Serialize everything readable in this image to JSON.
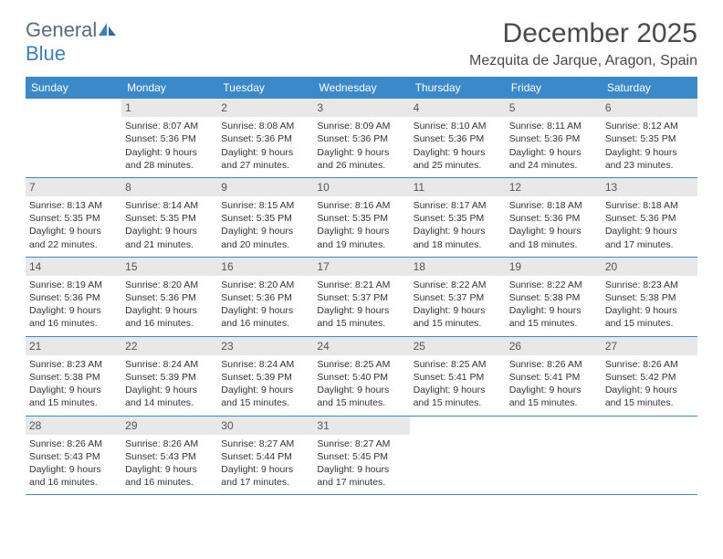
{
  "brand": {
    "general": "General",
    "blue": "Blue"
  },
  "header": {
    "title": "December 2025",
    "location": "Mezquita de Jarque, Aragon, Spain"
  },
  "colors": {
    "header_bg": "#3b89c9",
    "header_text": "#ffffff",
    "daynum_bg": "#e8e8e8",
    "row_border": "#3b89c9",
    "logo_general": "#5a6b7a",
    "logo_blue": "#3b7fc4"
  },
  "dayNames": [
    "Sunday",
    "Monday",
    "Tuesday",
    "Wednesday",
    "Thursday",
    "Friday",
    "Saturday"
  ],
  "weeks": [
    [
      null,
      {
        "n": "1",
        "sr": "8:07 AM",
        "ss": "5:36 PM",
        "dl": "9 hours and 28 minutes."
      },
      {
        "n": "2",
        "sr": "8:08 AM",
        "ss": "5:36 PM",
        "dl": "9 hours and 27 minutes."
      },
      {
        "n": "3",
        "sr": "8:09 AM",
        "ss": "5:36 PM",
        "dl": "9 hours and 26 minutes."
      },
      {
        "n": "4",
        "sr": "8:10 AM",
        "ss": "5:36 PM",
        "dl": "9 hours and 25 minutes."
      },
      {
        "n": "5",
        "sr": "8:11 AM",
        "ss": "5:36 PM",
        "dl": "9 hours and 24 minutes."
      },
      {
        "n": "6",
        "sr": "8:12 AM",
        "ss": "5:35 PM",
        "dl": "9 hours and 23 minutes."
      }
    ],
    [
      {
        "n": "7",
        "sr": "8:13 AM",
        "ss": "5:35 PM",
        "dl": "9 hours and 22 minutes."
      },
      {
        "n": "8",
        "sr": "8:14 AM",
        "ss": "5:35 PM",
        "dl": "9 hours and 21 minutes."
      },
      {
        "n": "9",
        "sr": "8:15 AM",
        "ss": "5:35 PM",
        "dl": "9 hours and 20 minutes."
      },
      {
        "n": "10",
        "sr": "8:16 AM",
        "ss": "5:35 PM",
        "dl": "9 hours and 19 minutes."
      },
      {
        "n": "11",
        "sr": "8:17 AM",
        "ss": "5:35 PM",
        "dl": "9 hours and 18 minutes."
      },
      {
        "n": "12",
        "sr": "8:18 AM",
        "ss": "5:36 PM",
        "dl": "9 hours and 18 minutes."
      },
      {
        "n": "13",
        "sr": "8:18 AM",
        "ss": "5:36 PM",
        "dl": "9 hours and 17 minutes."
      }
    ],
    [
      {
        "n": "14",
        "sr": "8:19 AM",
        "ss": "5:36 PM",
        "dl": "9 hours and 16 minutes."
      },
      {
        "n": "15",
        "sr": "8:20 AM",
        "ss": "5:36 PM",
        "dl": "9 hours and 16 minutes."
      },
      {
        "n": "16",
        "sr": "8:20 AM",
        "ss": "5:36 PM",
        "dl": "9 hours and 16 minutes."
      },
      {
        "n": "17",
        "sr": "8:21 AM",
        "ss": "5:37 PM",
        "dl": "9 hours and 15 minutes."
      },
      {
        "n": "18",
        "sr": "8:22 AM",
        "ss": "5:37 PM",
        "dl": "9 hours and 15 minutes."
      },
      {
        "n": "19",
        "sr": "8:22 AM",
        "ss": "5:38 PM",
        "dl": "9 hours and 15 minutes."
      },
      {
        "n": "20",
        "sr": "8:23 AM",
        "ss": "5:38 PM",
        "dl": "9 hours and 15 minutes."
      }
    ],
    [
      {
        "n": "21",
        "sr": "8:23 AM",
        "ss": "5:38 PM",
        "dl": "9 hours and 15 minutes."
      },
      {
        "n": "22",
        "sr": "8:24 AM",
        "ss": "5:39 PM",
        "dl": "9 hours and 14 minutes."
      },
      {
        "n": "23",
        "sr": "8:24 AM",
        "ss": "5:39 PM",
        "dl": "9 hours and 15 minutes."
      },
      {
        "n": "24",
        "sr": "8:25 AM",
        "ss": "5:40 PM",
        "dl": "9 hours and 15 minutes."
      },
      {
        "n": "25",
        "sr": "8:25 AM",
        "ss": "5:41 PM",
        "dl": "9 hours and 15 minutes."
      },
      {
        "n": "26",
        "sr": "8:26 AM",
        "ss": "5:41 PM",
        "dl": "9 hours and 15 minutes."
      },
      {
        "n": "27",
        "sr": "8:26 AM",
        "ss": "5:42 PM",
        "dl": "9 hours and 15 minutes."
      }
    ],
    [
      {
        "n": "28",
        "sr": "8:26 AM",
        "ss": "5:43 PM",
        "dl": "9 hours and 16 minutes."
      },
      {
        "n": "29",
        "sr": "8:26 AM",
        "ss": "5:43 PM",
        "dl": "9 hours and 16 minutes."
      },
      {
        "n": "30",
        "sr": "8:27 AM",
        "ss": "5:44 PM",
        "dl": "9 hours and 17 minutes."
      },
      {
        "n": "31",
        "sr": "8:27 AM",
        "ss": "5:45 PM",
        "dl": "9 hours and 17 minutes."
      },
      null,
      null,
      null
    ]
  ],
  "labels": {
    "sunrise": "Sunrise:",
    "sunset": "Sunset:",
    "daylight": "Daylight:"
  }
}
